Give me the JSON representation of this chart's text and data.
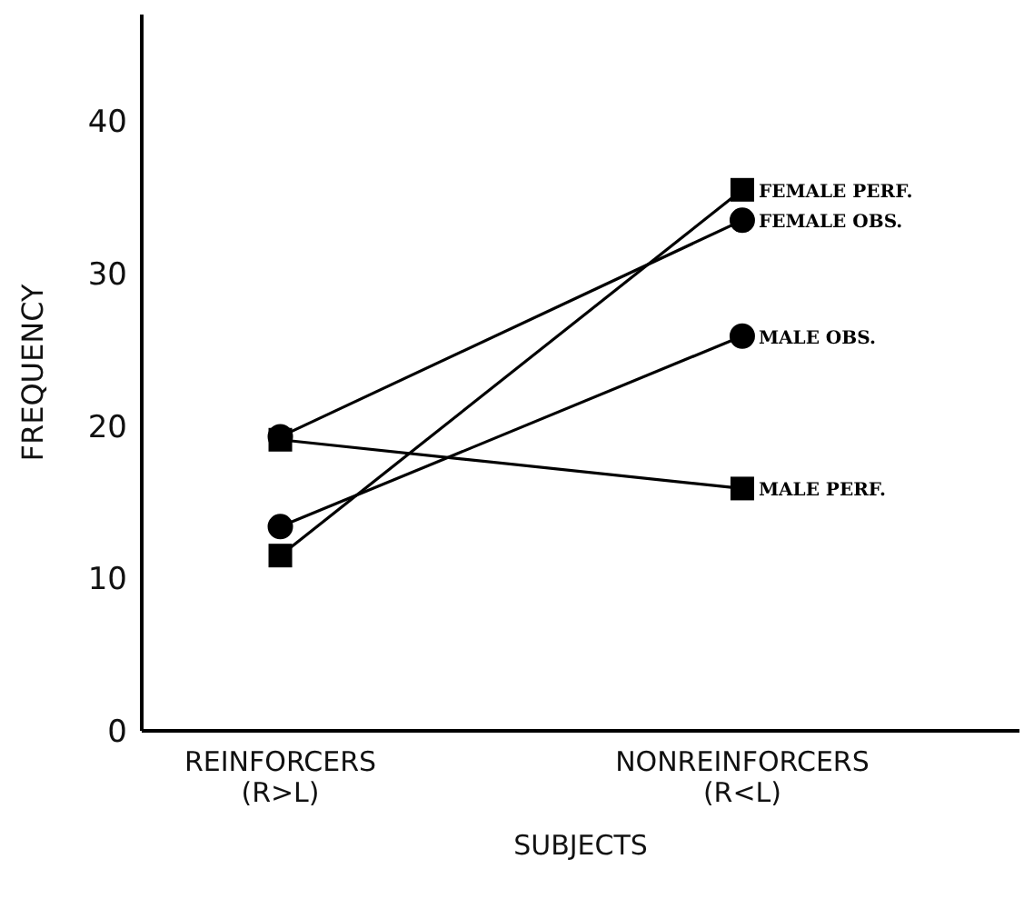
{
  "chart_data": {
    "type": "line",
    "xlabel": "SUBJECTS",
    "ylabel": "FREQUENCY",
    "categories": [
      "REINFORCERS (R>L)",
      "NONREINFORCERS (R<L)"
    ],
    "series": [
      {
        "name": "FEMALE PERF.",
        "color": "#000000",
        "marker": "square",
        "values": [
          11.5,
          35.5
        ]
      },
      {
        "name": "FEMALE OBS.",
        "color": "#000000",
        "marker": "circle",
        "values": [
          19.3,
          33.5
        ]
      },
      {
        "name": "MALE OBS.",
        "color": "#000000",
        "marker": "circle",
        "values": [
          13.4,
          25.9
        ]
      },
      {
        "name": "MALE PERF.",
        "color": "#000000",
        "marker": "square",
        "values": [
          19.1,
          15.9
        ]
      }
    ],
    "ylim": [
      0,
      47
    ],
    "yticks": [
      0,
      10,
      20,
      30,
      40
    ],
    "grid": false,
    "legend": false
  }
}
